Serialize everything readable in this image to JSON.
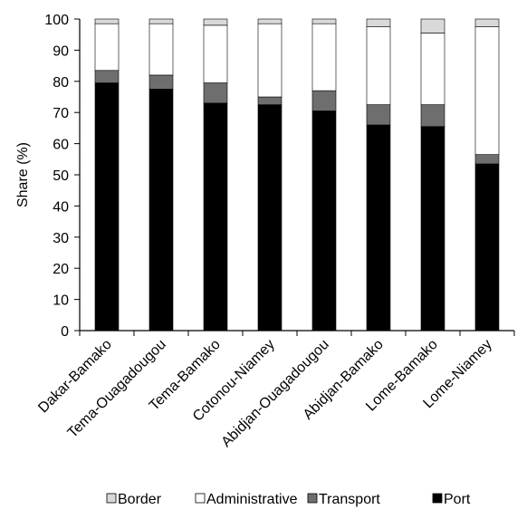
{
  "chart_data": {
    "type": "bar",
    "stacked": true,
    "title": "",
    "xlabel": "",
    "ylabel": "Share (%)",
    "ylim": [
      0,
      100
    ],
    "yticks": [
      0,
      10,
      20,
      30,
      40,
      50,
      60,
      70,
      80,
      90,
      100
    ],
    "grid": false,
    "legend_position": "bottom",
    "categories": [
      "Dakar-Bamako",
      "Tema-Ouagadougou",
      "Tema-Bamako",
      "Cotonou-Niamey",
      "Abidjan-Ouagadougou",
      "Abidjan-Bamako",
      "Lome-Bamako",
      "Lome-Niamey"
    ],
    "series": [
      {
        "name": "Port",
        "color": "#000000",
        "values": [
          79.5,
          77.5,
          73,
          72.5,
          70.5,
          66,
          65.5,
          53.5
        ]
      },
      {
        "name": "Transport",
        "color": "#6e6e6e",
        "values": [
          4,
          4.5,
          6.5,
          2.5,
          6.5,
          6.5,
          7,
          3
        ]
      },
      {
        "name": "Administrative",
        "color": "#ffffff",
        "values": [
          15,
          16.5,
          18.5,
          23.5,
          21.5,
          25,
          23,
          41
        ]
      },
      {
        "name": "Border",
        "color": "#d9d9d9",
        "values": [
          1.5,
          1.5,
          2,
          1.5,
          1.5,
          2.5,
          4.5,
          2.5
        ]
      }
    ],
    "legend_order": [
      "Border",
      "Administrative",
      "Transport",
      "Port"
    ]
  }
}
